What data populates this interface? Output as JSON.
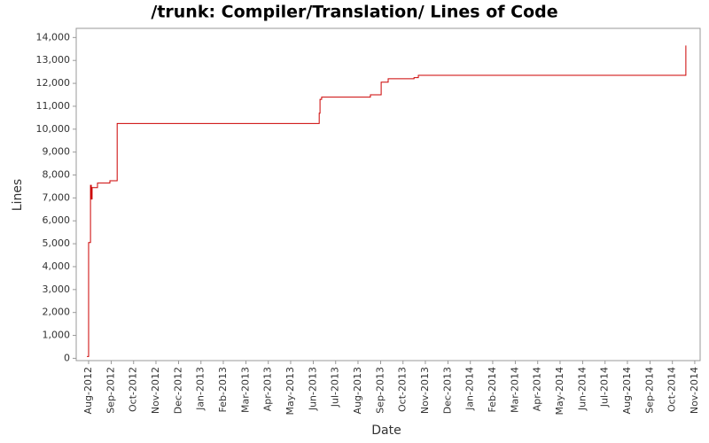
{
  "chart_data": {
    "type": "line",
    "title": "/trunk: Compiler/Translation/ Lines of Code",
    "x_label": "Date",
    "y_label": "Lines",
    "x": [
      2012.577,
      2012.583,
      2012.583,
      2012.59,
      2012.59,
      2012.593,
      2012.593,
      2012.596,
      2012.596,
      2012.616,
      2012.616,
      2012.662,
      2012.662,
      2012.689,
      2012.689,
      2013.439,
      2013.439,
      2013.442,
      2013.442,
      2013.448,
      2013.448,
      2013.629,
      2013.629,
      2013.669,
      2013.669,
      2013.695,
      2013.695,
      2013.791,
      2013.791,
      2013.807,
      2013.807,
      2014.8,
      2014.8
    ],
    "series": [
      {
        "name": "Lines",
        "color": "#cc0000",
        "values": [
          80,
          80,
          5050,
          5050,
          7550,
          7550,
          6950,
          6950,
          7450,
          7450,
          7650,
          7650,
          7750,
          7750,
          10250,
          10250,
          10700,
          10700,
          11300,
          11300,
          11400,
          11400,
          11500,
          11500,
          12050,
          12050,
          12200,
          12200,
          12250,
          12250,
          12350,
          12350,
          13650
        ]
      }
    ],
    "xlim": [
      2012.537,
      2014.853
    ],
    "ylim": [
      -100,
      14400
    ],
    "yticks": [
      0,
      {
        "value": 1000,
        "label": "1,000"
      },
      {
        "value": 2000,
        "label": "2,000"
      },
      {
        "value": 3000,
        "label": "3,000"
      },
      {
        "value": 4000,
        "label": "4,000"
      },
      {
        "value": 5000,
        "label": "5,000"
      },
      {
        "value": 6000,
        "label": "6,000"
      },
      {
        "value": 7000,
        "label": "7,000"
      },
      {
        "value": 8000,
        "label": "8,000"
      },
      {
        "value": 9000,
        "label": "9,000"
      },
      {
        "value": 10000,
        "label": "10,000"
      },
      {
        "value": 11000,
        "label": "11,000"
      },
      {
        "value": 12000,
        "label": "12,000"
      },
      {
        "value": 13000,
        "label": "13,000"
      },
      {
        "value": 14000,
        "label": "14,000"
      }
    ],
    "xticks": [
      {
        "value": 2012.583,
        "label": "Aug-2012"
      },
      {
        "value": 2012.667,
        "label": "Sep-2012"
      },
      {
        "value": 2012.75,
        "label": "Oct-2012"
      },
      {
        "value": 2012.833,
        "label": "Nov-2012"
      },
      {
        "value": 2012.917,
        "label": "Dec-2012"
      },
      {
        "value": 2013,
        "label": "Jan-2013"
      },
      {
        "value": 2013.083,
        "label": "Feb-2013"
      },
      {
        "value": 2013.167,
        "label": "Mar-2013"
      },
      {
        "value": 2013.25,
        "label": "Apr-2013"
      },
      {
        "value": 2013.333,
        "label": "May-2013"
      },
      {
        "value": 2013.417,
        "label": "Jun-2013"
      },
      {
        "value": 2013.5,
        "label": "Jul-2013"
      },
      {
        "value": 2013.583,
        "label": "Aug-2013"
      },
      {
        "value": 2013.667,
        "label": "Sep-2013"
      },
      {
        "value": 2013.75,
        "label": "Oct-2013"
      },
      {
        "value": 2013.833,
        "label": "Nov-2013"
      },
      {
        "value": 2013.917,
        "label": "Dec-2013"
      },
      {
        "value": 2014,
        "label": "Jan-2014"
      },
      {
        "value": 2014.083,
        "label": "Feb-2014"
      },
      {
        "value": 2014.167,
        "label": "Mar-2014"
      },
      {
        "value": 2014.25,
        "label": "Apr-2014"
      },
      {
        "value": 2014.333,
        "label": "May-2014"
      },
      {
        "value": 2014.417,
        "label": "Jun-2014"
      },
      {
        "value": 2014.5,
        "label": "Jul-2014"
      },
      {
        "value": 2014.583,
        "label": "Aug-2014"
      },
      {
        "value": 2014.667,
        "label": "Sep-2014"
      },
      {
        "value": 2014.75,
        "label": "Oct-2014"
      },
      {
        "value": 2014.833,
        "label": "Nov-2014"
      }
    ],
    "grid": false
  }
}
